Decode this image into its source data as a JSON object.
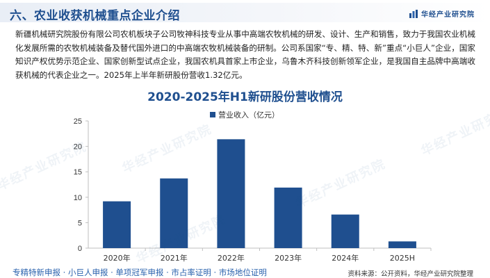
{
  "header": {
    "title": "六、农业收获机械重点企业介绍",
    "brand": "华经产业研究院"
  },
  "intro": "新疆机械研究院股份有限公司农机板块子公司牧神科技专业从事中高端农牧机械的研发、设计、生产和销售，致力于我国农业机械化发展所需的农牧机械装备及替代国外进口的中高端农牧机械装备的研制。公司系国家“专、精、特、新”重点“小巨人”企业，国家知识产权优势示范企业、国家创新型试点企业，我国农机具首家上市企业，乌鲁木齐科技创新领军企业，是我国自主品牌中高端收获机械的代表企业之一。2025年上半年新研股份营收1.32亿元。",
  "watermark": "华经产业研究院",
  "footer": {
    "tags": "专精特新申报 · 小巨人申报 · 单项冠军申报 · 市占率证明 · 市场地位证明",
    "source": "资料来源：公开资料，华经产业研究院整理"
  },
  "colors": {
    "bar": "#1f4f8f",
    "title": "#1f4f8f",
    "link": "#2a62ad"
  },
  "chart_data": {
    "type": "bar",
    "title": "2020-2025年H1新研股份营收情况",
    "categories": [
      "2020年",
      "2021年",
      "2022年",
      "2023年",
      "2024年",
      "2025H"
    ],
    "series": [
      {
        "name": "营业收入（亿元）",
        "values": [
          9.2,
          13.7,
          21.4,
          11.9,
          6.6,
          1.32
        ]
      }
    ],
    "ylim": [
      0,
      25
    ],
    "yticks": [
      0,
      5,
      10,
      15,
      20,
      25
    ],
    "xlabel": "",
    "ylabel": "",
    "legend": "top-center",
    "grid": false
  }
}
